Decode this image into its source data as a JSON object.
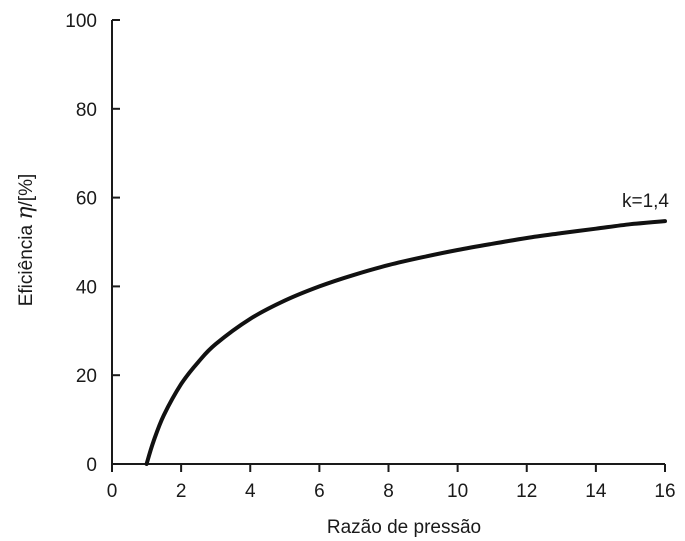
{
  "chart_data": {
    "type": "line",
    "title": "",
    "xlabel": "Razão de pressão",
    "ylabel_prefix": "Eficiência ",
    "ylabel_symbol": "η",
    "ylabel_suffix": "/[%]",
    "xlim": [
      0,
      16
    ],
    "ylim": [
      0,
      100
    ],
    "xticks": [
      0,
      2,
      4,
      6,
      8,
      10,
      12,
      14,
      16
    ],
    "yticks": [
      0,
      20,
      40,
      60,
      80,
      100
    ],
    "grid": false,
    "series": [
      {
        "name": "k=1,4",
        "x": [
          1,
          1.2,
          1.5,
          2,
          2.5,
          3,
          4,
          5,
          6,
          7,
          8,
          9,
          10,
          11,
          12,
          13,
          14,
          15,
          16
        ],
        "y": [
          0,
          5.1,
          11.0,
          18.0,
          23.0,
          27.0,
          32.7,
          36.8,
          40.0,
          42.6,
          44.8,
          46.6,
          48.2,
          49.6,
          50.9,
          52.0,
          53.0,
          54.0,
          54.7
        ]
      }
    ],
    "line_color": "#111111"
  }
}
